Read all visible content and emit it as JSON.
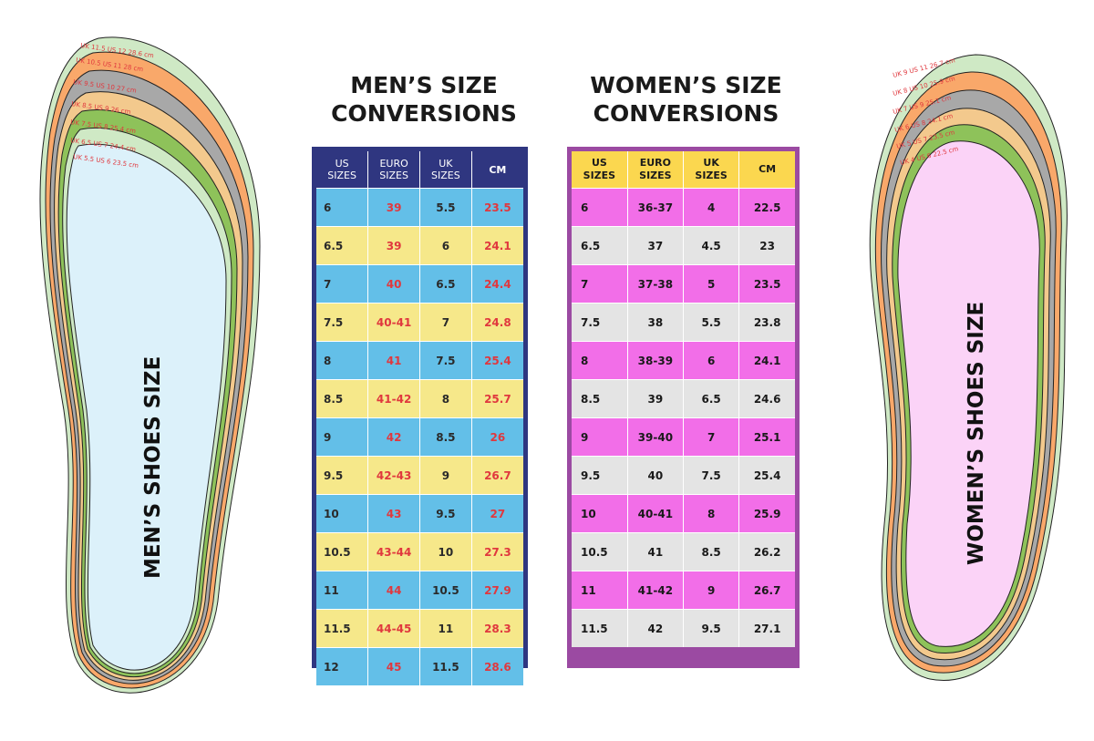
{
  "men": {
    "title_line1": "MEN’S SIZE",
    "title_line2": "CONVERSIONS",
    "vertical_label": "MEN’S SHOES SIZE",
    "headers": {
      "us_line1": "US",
      "us_line2": "SIZES",
      "euro_line1": "EURO",
      "euro_line2": "SIZES",
      "uk_line1": "UK",
      "uk_line2": "SIZES",
      "cm": "CM"
    },
    "rows": [
      {
        "us": "6",
        "euro": "39",
        "uk": "5.5",
        "cm": "23.5"
      },
      {
        "us": "6.5",
        "euro": "39",
        "uk": "6",
        "cm": "24.1"
      },
      {
        "us": "7",
        "euro": "40",
        "uk": "6.5",
        "cm": "24.4"
      },
      {
        "us": "7.5",
        "euro": "40-41",
        "uk": "7",
        "cm": "24.8"
      },
      {
        "us": "8",
        "euro": "41",
        "uk": "7.5",
        "cm": "25.4"
      },
      {
        "us": "8.5",
        "euro": "41-42",
        "uk": "8",
        "cm": "25.7"
      },
      {
        "us": "9",
        "euro": "42",
        "uk": "8.5",
        "cm": "26"
      },
      {
        "us": "9.5",
        "euro": "42-43",
        "uk": "9",
        "cm": "26.7"
      },
      {
        "us": "10",
        "euro": "43",
        "uk": "9.5",
        "cm": "27"
      },
      {
        "us": "10.5",
        "euro": "43-44",
        "uk": "10",
        "cm": "27.3"
      },
      {
        "us": "11",
        "euro": "44",
        "uk": "10.5",
        "cm": "27.9"
      },
      {
        "us": "11.5",
        "euro": "44-45",
        "uk": "11",
        "cm": "28.3"
      },
      {
        "us": "12",
        "euro": "45",
        "uk": "11.5",
        "cm": "28.6"
      }
    ],
    "insole_labels": [
      {
        "uk": "UK 11.5",
        "us": "US 12",
        "cm": "28.6 cm"
      },
      {
        "uk": "UK 10.5",
        "us": "US 11",
        "cm": "28 cm"
      },
      {
        "uk": "UK 9.5",
        "us": "US 10",
        "cm": "27 cm"
      },
      {
        "uk": "UK 8.5",
        "us": "US 9",
        "cm": "26 cm"
      },
      {
        "uk": "UK 7.5",
        "us": "US 8",
        "cm": "25.4 cm"
      },
      {
        "uk": "UK 6.5",
        "us": "US 7",
        "cm": "24.4 cm"
      },
      {
        "uk": "UK 5.5",
        "us": "US 6",
        "cm": "23.5 cm"
      }
    ]
  },
  "women": {
    "title_line1": "WOMEN’S SIZE",
    "title_line2": "CONVERSIONS",
    "vertical_label": "WOMEN’S SHOES SIZE",
    "headers": {
      "us_line1": "US",
      "us_line2": "SIZES",
      "euro_line1": "EURO",
      "euro_line2": "SIZES",
      "uk_line1": "UK",
      "uk_line2": "SIZES",
      "cm": "CM"
    },
    "rows": [
      {
        "us": "6",
        "euro": "36-37",
        "uk": "4",
        "cm": "22.5"
      },
      {
        "us": "6.5",
        "euro": "37",
        "uk": "4.5",
        "cm": "23"
      },
      {
        "us": "7",
        "euro": "37-38",
        "uk": "5",
        "cm": "23.5"
      },
      {
        "us": "7.5",
        "euro": "38",
        "uk": "5.5",
        "cm": "23.8"
      },
      {
        "us": "8",
        "euro": "38-39",
        "uk": "6",
        "cm": "24.1"
      },
      {
        "us": "8.5",
        "euro": "39",
        "uk": "6.5",
        "cm": "24.6"
      },
      {
        "us": "9",
        "euro": "39-40",
        "uk": "7",
        "cm": "25.1"
      },
      {
        "us": "9.5",
        "euro": "40",
        "uk": "7.5",
        "cm": "25.4"
      },
      {
        "us": "10",
        "euro": "40-41",
        "uk": "8",
        "cm": "25.9"
      },
      {
        "us": "10.5",
        "euro": "41",
        "uk": "8.5",
        "cm": "26.2"
      },
      {
        "us": "11",
        "euro": "41-42",
        "uk": "9",
        "cm": "26.7"
      },
      {
        "us": "11.5",
        "euro": "42",
        "uk": "9.5",
        "cm": "27.1"
      }
    ],
    "insole_labels": [
      {
        "uk": "UK 9",
        "us": "US 11",
        "cm": "26.7 cm"
      },
      {
        "uk": "UK 8",
        "us": "US 10",
        "cm": "25.9 cm"
      },
      {
        "uk": "UK 7",
        "us": "US 9",
        "cm": "25.1 cm"
      },
      {
        "uk": "UK 6",
        "us": "US 8",
        "cm": "24.1 cm"
      },
      {
        "uk": "UK 5",
        "us": "US 7",
        "cm": "23.5 cm"
      },
      {
        "uk": "UK 4",
        "us": "US 6",
        "cm": "22.5 cm"
      }
    ]
  },
  "colors": {
    "men_header": "#2f3680",
    "men_row_blue": "#63bfe8",
    "men_row_yellow": "#f6e88a",
    "men_red_text": "#e0383e",
    "women_header": "#fbd74f",
    "women_row_pink": "#f26ee8",
    "women_row_grey": "#e4e4e4",
    "women_border": "#9b4aa2",
    "men_insole_fill": "#dcf1fa",
    "women_insole_fill": "#fbd3f7"
  }
}
